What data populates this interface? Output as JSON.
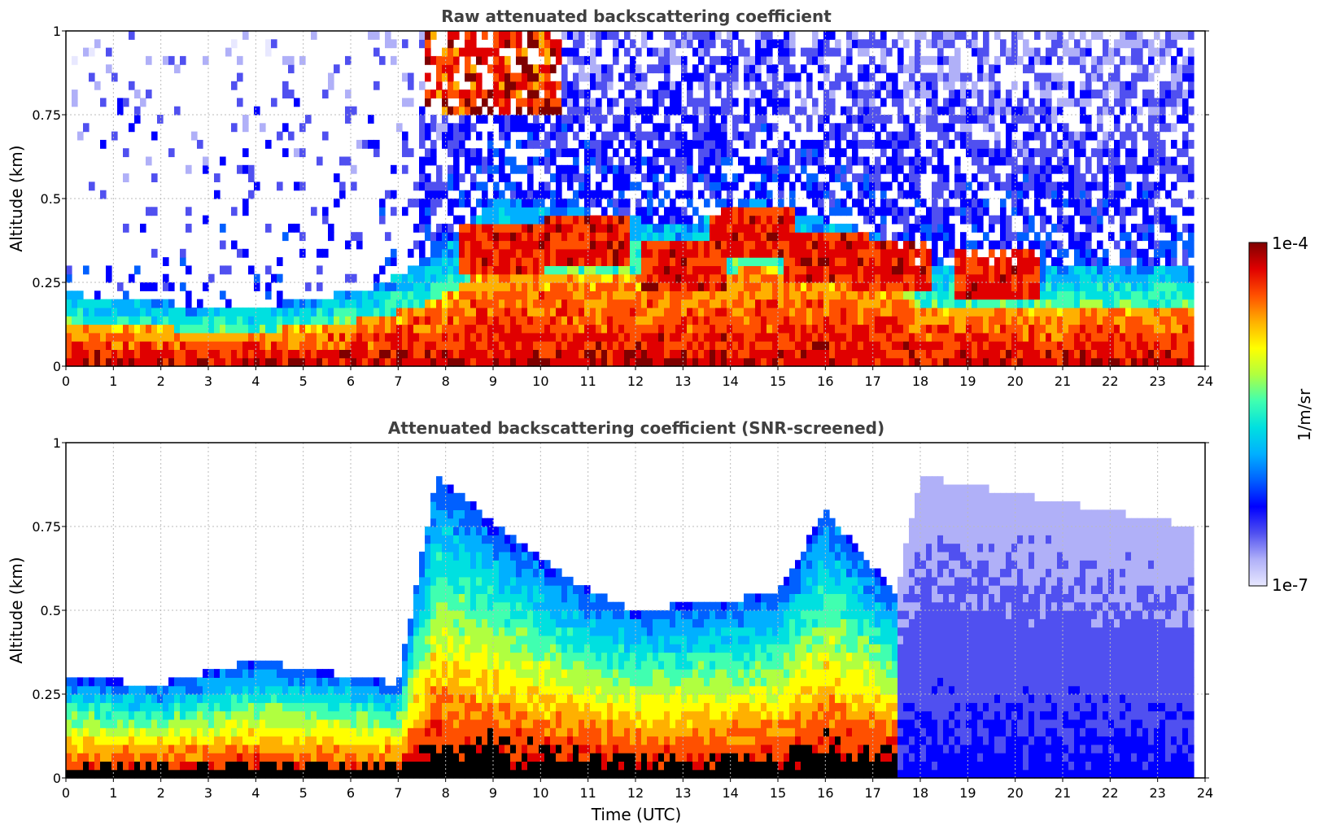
{
  "chart_data": [
    {
      "type": "heatmap",
      "title": "Raw attenuated backscattering coefficient",
      "xlabel": "",
      "ylabel": "Altitude (km)",
      "xlim": [
        0,
        24
      ],
      "ylim": [
        0,
        1
      ],
      "xticks": [
        "0",
        "1",
        "2",
        "3",
        "4",
        "5",
        "6",
        "7",
        "8",
        "9",
        "10",
        "11",
        "12",
        "13",
        "14",
        "15",
        "16",
        "17",
        "18",
        "19",
        "20",
        "21",
        "22",
        "23",
        "24"
      ],
      "yticks": [
        "0",
        "0.25",
        "0.5",
        "0.75",
        "1"
      ],
      "grid": true,
      "screened": false,
      "features": {
        "surface_layer_top_km": [
          [
            0,
            0.22
          ],
          [
            1,
            0.2
          ],
          [
            3,
            0.18
          ],
          [
            5,
            0.19
          ],
          [
            6.5,
            0.24
          ],
          [
            7.8,
            0.33
          ],
          [
            9,
            0.5
          ],
          [
            11,
            0.46
          ],
          [
            13,
            0.42
          ],
          [
            14.5,
            0.5
          ],
          [
            17.4,
            0.38
          ],
          [
            18,
            0.3
          ],
          [
            23.8,
            0.3
          ]
        ],
        "cloud_layer_km": [
          [
            9.2,
            0.35
          ],
          [
            11,
            0.37
          ],
          [
            13,
            0.3
          ],
          [
            14.5,
            0.4
          ],
          [
            16,
            0.33
          ],
          [
            17.3,
            0.3
          ],
          [
            19.6,
            0.27
          ]
        ],
        "data_end_hour": 23.8
      }
    },
    {
      "type": "heatmap",
      "title": "Attenuated backscattering coefficient (SNR-screened)",
      "xlabel": "Time (UTC)",
      "ylabel": "Altitude (km)",
      "xlim": [
        0,
        24
      ],
      "ylim": [
        0,
        1
      ],
      "xticks": [
        "0",
        "1",
        "2",
        "3",
        "4",
        "5",
        "6",
        "7",
        "8",
        "9",
        "10",
        "11",
        "12",
        "13",
        "14",
        "15",
        "16",
        "17",
        "18",
        "19",
        "20",
        "21",
        "22",
        "23",
        "24"
      ],
      "yticks": [
        "0",
        "0.25",
        "0.5",
        "0.75",
        "1"
      ],
      "grid": true,
      "screened": true,
      "features": {
        "screened_out_above_km": [
          [
            0,
            0.3
          ],
          [
            2,
            0.28
          ],
          [
            4,
            0.35
          ],
          [
            7,
            0.28
          ],
          [
            7.8,
            0.9
          ],
          [
            10.5,
            0.6
          ],
          [
            12,
            0.5
          ],
          [
            15,
            0.55
          ],
          [
            16,
            0.8
          ],
          [
            17.5,
            0.55
          ],
          [
            18,
            0.9
          ],
          [
            23.8,
            0.75
          ]
        ],
        "data_end_hour": 23.8
      }
    }
  ],
  "colorbar": {
    "label": "1/m/sr",
    "max_label": "1e-4",
    "min_label": "1e-7",
    "colors": [
      "#e8e8ff",
      "#b0b0f8",
      "#5050f0",
      "#0000ff",
      "#0060ff",
      "#00b0ff",
      "#00e0e0",
      "#40ffb0",
      "#b0ff40",
      "#ffff00",
      "#ffb000",
      "#ff5000",
      "#e00000",
      "#7f0000"
    ]
  }
}
